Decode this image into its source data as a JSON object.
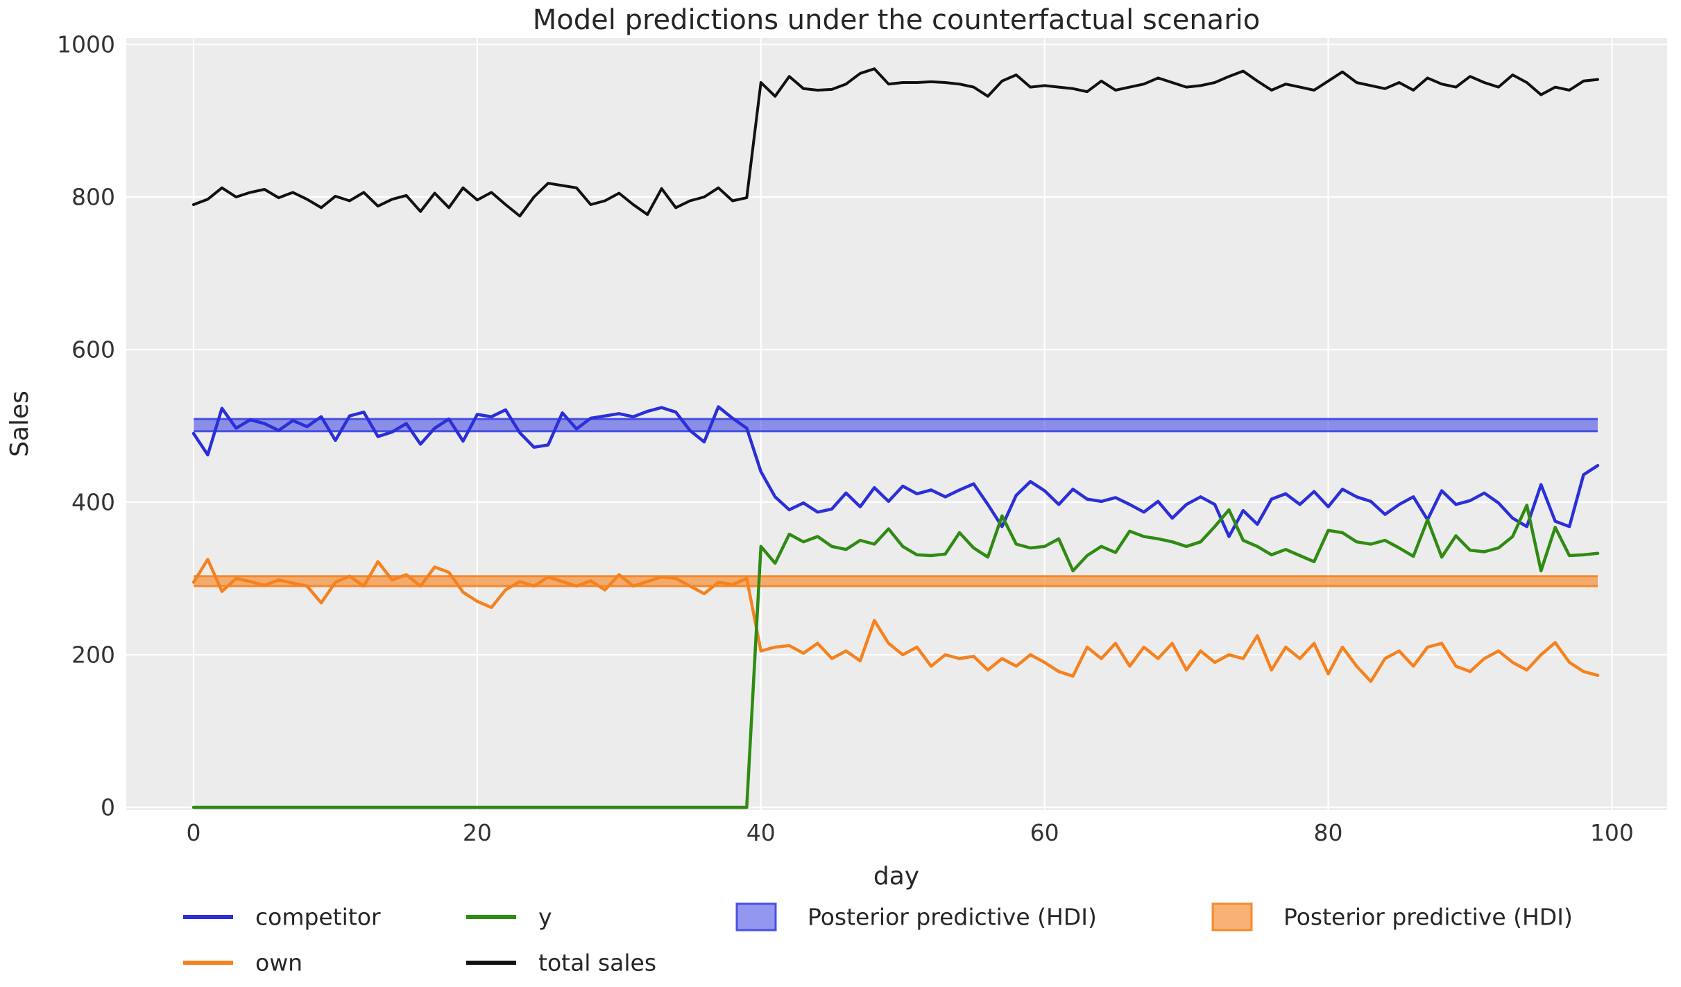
{
  "chart_data": {
    "type": "line",
    "title": "Model predictions under the counterfactual scenario",
    "xlabel": "day",
    "ylabel": "Sales",
    "xticks": [
      0,
      20,
      40,
      60,
      80,
      100
    ],
    "yticks": [
      0,
      200,
      400,
      600,
      800,
      1000
    ],
    "xlim": [
      -5,
      104
    ],
    "ylim": [
      0,
      1000
    ],
    "grid": true,
    "legend_position": "below",
    "background": "#ececec",
    "grid_color": "#ffffff",
    "x": [
      0,
      1,
      2,
      3,
      4,
      5,
      6,
      7,
      8,
      9,
      10,
      11,
      12,
      13,
      14,
      15,
      16,
      17,
      18,
      19,
      20,
      21,
      22,
      23,
      24,
      25,
      26,
      27,
      28,
      29,
      30,
      31,
      32,
      33,
      34,
      35,
      36,
      37,
      38,
      39,
      40,
      41,
      42,
      43,
      44,
      45,
      46,
      47,
      48,
      49,
      50,
      51,
      52,
      53,
      54,
      55,
      56,
      57,
      58,
      59,
      60,
      61,
      62,
      63,
      64,
      65,
      66,
      67,
      68,
      69,
      70,
      71,
      72,
      73,
      74,
      75,
      76,
      77,
      78,
      79,
      80,
      81,
      82,
      83,
      84,
      85,
      86,
      87,
      88,
      89,
      90,
      91,
      92,
      93,
      94,
      95,
      96,
      97,
      98,
      99
    ],
    "series": [
      {
        "name": "competitor",
        "color": "#2b2fd8",
        "values": [
          490,
          462,
          523,
          497,
          508,
          503,
          494,
          507,
          499,
          512,
          481,
          513,
          518,
          486,
          492,
          503,
          476,
          497,
          509,
          480,
          515,
          512,
          521,
          491,
          472,
          475,
          517,
          496,
          510,
          513,
          516,
          512,
          519,
          524,
          518,
          494,
          479,
          525,
          510,
          497,
          440,
          407,
          390,
          399,
          387,
          391,
          412,
          394,
          419,
          401,
          421,
          411,
          416,
          407,
          416,
          424,
          397,
          368,
          409,
          427,
          415,
          397,
          417,
          404,
          401,
          406,
          397,
          387,
          401,
          379,
          397,
          407,
          397,
          355,
          389,
          371,
          404,
          411,
          397,
          414,
          394,
          417,
          407,
          401,
          384,
          397,
          407,
          377,
          415,
          397,
          402,
          412,
          399,
          379,
          368,
          423,
          375,
          368,
          436,
          448
        ]
      },
      {
        "name": "own",
        "color": "#f5821f",
        "values": [
          295,
          325,
          283,
          300,
          296,
          291,
          298,
          294,
          290,
          268,
          295,
          303,
          290,
          322,
          298,
          305,
          290,
          315,
          308,
          282,
          270,
          262,
          285,
          296,
          290,
          302,
          296,
          290,
          297,
          285,
          305,
          290,
          296,
          302,
          300,
          290,
          280,
          295,
          292,
          300,
          205,
          210,
          212,
          202,
          215,
          195,
          205,
          192,
          245,
          215,
          200,
          210,
          185,
          200,
          195,
          198,
          180,
          195,
          185,
          200,
          190,
          178,
          172,
          210,
          195,
          215,
          185,
          210,
          195,
          215,
          180,
          205,
          190,
          200,
          195,
          225,
          180,
          210,
          195,
          215,
          175,
          210,
          185,
          165,
          195,
          205,
          185,
          210,
          215,
          185,
          178,
          195,
          205,
          190,
          180,
          200,
          216,
          190,
          178,
          173
        ]
      },
      {
        "name": "y",
        "color": "#2f8b12",
        "values": [
          0,
          0,
          0,
          0,
          0,
          0,
          0,
          0,
          0,
          0,
          0,
          0,
          0,
          0,
          0,
          0,
          0,
          0,
          0,
          0,
          0,
          0,
          0,
          0,
          0,
          0,
          0,
          0,
          0,
          0,
          0,
          0,
          0,
          0,
          0,
          0,
          0,
          0,
          0,
          0,
          342,
          320,
          358,
          348,
          355,
          342,
          338,
          350,
          345,
          365,
          342,
          331,
          330,
          332,
          360,
          340,
          328,
          382,
          345,
          340,
          342,
          352,
          310,
          330,
          342,
          334,
          362,
          355,
          352,
          348,
          342,
          348,
          368,
          390,
          350,
          342,
          331,
          338,
          330,
          322,
          363,
          360,
          348,
          345,
          350,
          340,
          329,
          377,
          328,
          356,
          337,
          335,
          340,
          355,
          396,
          310,
          367,
          330,
          331,
          333
        ]
      },
      {
        "name": "total sales",
        "color": "#111111",
        "values": [
          790,
          797,
          812,
          800,
          806,
          810,
          799,
          806,
          797,
          786,
          801,
          795,
          806,
          788,
          797,
          802,
          781,
          805,
          786,
          812,
          796,
          806,
          790,
          775,
          800,
          818,
          815,
          812,
          790,
          795,
          805,
          790,
          777,
          811,
          786,
          795,
          800,
          812,
          795,
          799,
          950,
          932,
          958,
          942,
          940,
          941,
          948,
          962,
          968,
          948,
          950,
          950,
          951,
          950,
          948,
          944,
          932,
          952,
          960,
          944,
          946,
          944,
          942,
          938,
          952,
          940,
          944,
          948,
          956,
          950,
          944,
          946,
          950,
          958,
          965,
          952,
          940,
          948,
          944,
          940,
          952,
          964,
          950,
          946,
          942,
          950,
          940,
          956,
          948,
          944,
          958,
          950,
          944,
          960,
          950,
          934,
          944,
          940,
          952,
          954
        ]
      }
    ],
    "bands": [
      {
        "name": "Posterior predictive (HDI)",
        "color": "#3c42e2",
        "fill_opacity": 0.55,
        "lo": 493,
        "hi": 509,
        "x_start": 0,
        "x_end": 99
      },
      {
        "name": "Posterior predictive (HDI)",
        "color": "#f5821f",
        "fill_opacity": 0.62,
        "lo": 290,
        "hi": 303,
        "x_start": 0,
        "x_end": 99
      }
    ]
  }
}
